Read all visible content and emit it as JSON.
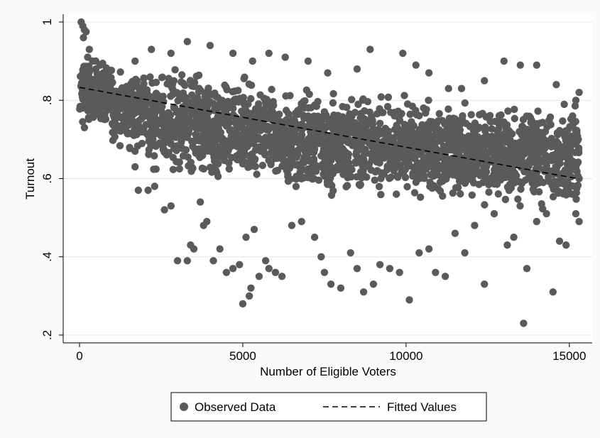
{
  "chart_data": {
    "type": "scatter",
    "xlabel": "Number of Eligible Voters",
    "ylabel": "Turnout",
    "xlim": [
      -500,
      15700
    ],
    "ylim": [
      0.18,
      1.02
    ],
    "x_ticks": [
      {
        "value": 0,
        "label": "0"
      },
      {
        "value": 5000,
        "label": "5000"
      },
      {
        "value": 10000,
        "label": "10000"
      },
      {
        "value": 15000,
        "label": "15000"
      }
    ],
    "y_ticks": [
      {
        "value": 0.2,
        "label": ".2"
      },
      {
        "value": 0.4,
        "label": ".4"
      },
      {
        "value": 0.6,
        "label": ".6"
      },
      {
        "value": 0.8,
        "label": ".8"
      },
      {
        "value": 1.0,
        "label": "1"
      }
    ],
    "grid": "horizontal",
    "legend_position": "bottom",
    "colors": {
      "points": "#5a5a5a",
      "fit_line": "#000000",
      "grid": "#e6e6e6",
      "outer_background": "#fafafa"
    },
    "series": [
      {
        "name": "Observed Data",
        "kind": "scatter",
        "points": [
          [
            50,
            1.0
          ],
          [
            100,
            0.99
          ],
          [
            150,
            0.98
          ],
          [
            200,
            0.975
          ],
          [
            120,
            0.96
          ],
          [
            300,
            0.93
          ],
          [
            250,
            0.91
          ],
          [
            80,
            0.78
          ],
          [
            150,
            0.73
          ],
          [
            400,
            0.9
          ],
          [
            500,
            0.88
          ],
          [
            700,
            0.86
          ],
          [
            900,
            0.84
          ],
          [
            1200,
            0.8
          ],
          [
            1500,
            0.79
          ],
          [
            1700,
            0.67
          ],
          [
            1700,
            0.63
          ],
          [
            1800,
            0.57
          ],
          [
            2100,
            0.57
          ],
          [
            2300,
            0.58
          ],
          [
            2600,
            0.52
          ],
          [
            2800,
            0.53
          ],
          [
            3000,
            0.39
          ],
          [
            3300,
            0.39
          ],
          [
            3400,
            0.43
          ],
          [
            3500,
            0.42
          ],
          [
            3700,
            0.54
          ],
          [
            3800,
            0.48
          ],
          [
            3900,
            0.49
          ],
          [
            4100,
            0.39
          ],
          [
            4300,
            0.42
          ],
          [
            4500,
            0.36
          ],
          [
            4700,
            0.37
          ],
          [
            4900,
            0.38
          ],
          [
            5000,
            0.28
          ],
          [
            5100,
            0.45
          ],
          [
            5200,
            0.3
          ],
          [
            5250,
            0.32
          ],
          [
            5350,
            0.47
          ],
          [
            5500,
            0.35
          ],
          [
            5700,
            0.39
          ],
          [
            5800,
            0.37
          ],
          [
            6000,
            0.36
          ],
          [
            6200,
            0.35
          ],
          [
            6500,
            0.48
          ],
          [
            6800,
            0.49
          ],
          [
            7200,
            0.45
          ],
          [
            7400,
            0.4
          ],
          [
            7500,
            0.36
          ],
          [
            7700,
            0.33
          ],
          [
            8000,
            0.32
          ],
          [
            8300,
            0.41
          ],
          [
            8500,
            0.37
          ],
          [
            8700,
            0.31
          ],
          [
            9000,
            0.33
          ],
          [
            9200,
            0.38
          ],
          [
            9500,
            0.37
          ],
          [
            9800,
            0.36
          ],
          [
            10100,
            0.29
          ],
          [
            10400,
            0.41
          ],
          [
            10700,
            0.42
          ],
          [
            10900,
            0.36
          ],
          [
            11200,
            0.35
          ],
          [
            11500,
            0.46
          ],
          [
            11800,
            0.41
          ],
          [
            12100,
            0.48
          ],
          [
            12400,
            0.33
          ],
          [
            12700,
            0.51
          ],
          [
            13100,
            0.43
          ],
          [
            13300,
            0.45
          ],
          [
            13600,
            0.23
          ],
          [
            13700,
            0.37
          ],
          [
            14000,
            0.49
          ],
          [
            14300,
            0.51
          ],
          [
            14500,
            0.31
          ],
          [
            14700,
            0.44
          ],
          [
            14900,
            0.43
          ],
          [
            15100,
            0.56
          ],
          [
            15300,
            0.49
          ],
          [
            15200,
            0.51
          ],
          [
            15300,
            0.6
          ],
          [
            15300,
            0.82
          ],
          [
            15200,
            0.8
          ],
          [
            15100,
            0.76
          ],
          [
            14900,
            0.7
          ],
          [
            14600,
            0.84
          ],
          [
            14000,
            0.89
          ],
          [
            13500,
            0.89
          ],
          [
            13000,
            0.9
          ],
          [
            12400,
            0.85
          ],
          [
            11700,
            0.83
          ],
          [
            11300,
            0.83
          ],
          [
            10700,
            0.87
          ],
          [
            10300,
            0.89
          ],
          [
            9900,
            0.92
          ],
          [
            8900,
            0.93
          ],
          [
            8500,
            0.88
          ],
          [
            7600,
            0.87
          ],
          [
            7000,
            0.9
          ],
          [
            6300,
            0.91
          ],
          [
            5800,
            0.92
          ],
          [
            5300,
            0.9
          ],
          [
            4700,
            0.92
          ],
          [
            4000,
            0.94
          ],
          [
            3300,
            0.95
          ],
          [
            2800,
            0.92
          ],
          [
            2200,
            0.93
          ],
          [
            1700,
            0.9
          ]
        ],
        "dense_band": [
          {
            "x": [
              0,
              1000
            ],
            "y_min": 0.72,
            "y_max": 0.92
          },
          {
            "x": [
              1000,
              2000
            ],
            "y_min": 0.66,
            "y_max": 0.9
          },
          {
            "x": [
              2000,
              4000
            ],
            "y_min": 0.58,
            "y_max": 0.9
          },
          {
            "x": [
              4000,
              6000
            ],
            "y_min": 0.56,
            "y_max": 0.88
          },
          {
            "x": [
              6000,
              8000
            ],
            "y_min": 0.52,
            "y_max": 0.86
          },
          {
            "x": [
              8000,
              10000
            ],
            "y_min": 0.54,
            "y_max": 0.84
          },
          {
            "x": [
              10000,
              12000
            ],
            "y_min": 0.52,
            "y_max": 0.82
          },
          {
            "x": [
              12000,
              15300
            ],
            "y_min": 0.5,
            "y_max": 0.82
          }
        ]
      },
      {
        "name": "Fitted Values",
        "kind": "line",
        "style": "dashed",
        "points": [
          [
            0,
            0.833
          ],
          [
            15300,
            0.599
          ]
        ]
      }
    ]
  }
}
